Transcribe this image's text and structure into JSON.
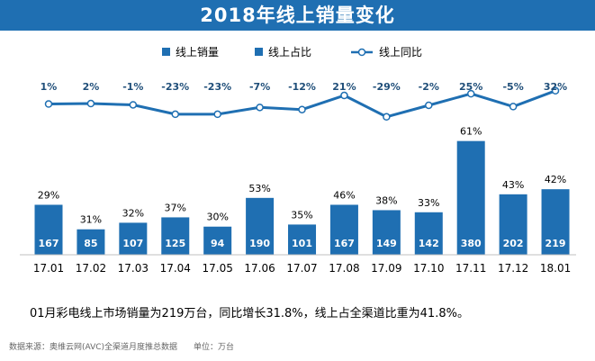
{
  "title": "2018年线上销量变化",
  "note": "01月彩电线上市场销量为219万台，同比增长31.8%，线上占全渠道比重为41.8%。",
  "footer": {
    "source": "数据来源：奥维云网(AVC)全渠道月度推总数据",
    "unit": "单位：万台"
  },
  "colors": {
    "title_bg": "#1f6fb2",
    "bar": "#1f6fb2",
    "line": "#1f6fb2",
    "marker_fill": "#ffffff"
  },
  "chart_data": {
    "type": "bar",
    "categories": [
      "17.01",
      "17.02",
      "17.03",
      "17.04",
      "17.05",
      "17.06",
      "17.07",
      "17.08",
      "17.09",
      "17.10",
      "17.11",
      "17.12",
      "18.01"
    ],
    "legend": [
      "线上销量",
      "线上占比",
      "线上同比"
    ],
    "legend_position": "top",
    "series": [
      {
        "name": "线上销量",
        "type": "bar",
        "values": [
          167,
          85,
          107,
          125,
          94,
          190,
          101,
          167,
          149,
          142,
          380,
          202,
          219
        ]
      },
      {
        "name": "线上占比",
        "type": "bar-label",
        "values": [
          "29%",
          "31%",
          "32%",
          "37%",
          "30%",
          "53%",
          "35%",
          "46%",
          "38%",
          "33%",
          "61%",
          "43%",
          "42%"
        ]
      },
      {
        "name": "线上同比",
        "type": "line",
        "values": [
          1,
          2,
          -1,
          -23,
          -23,
          -7,
          -12,
          21,
          -29,
          -2,
          25,
          -5,
          32
        ],
        "labels": [
          "1%",
          "2%",
          "-1%",
          "-23%",
          "-23%",
          "-7%",
          "-12%",
          "21%",
          "-29%",
          "-2%",
          "25%",
          "-5%",
          "32%"
        ]
      }
    ],
    "bar_ylim": [
      0,
      400
    ],
    "line_ylim": [
      -40,
      40
    ],
    "grid": false
  }
}
